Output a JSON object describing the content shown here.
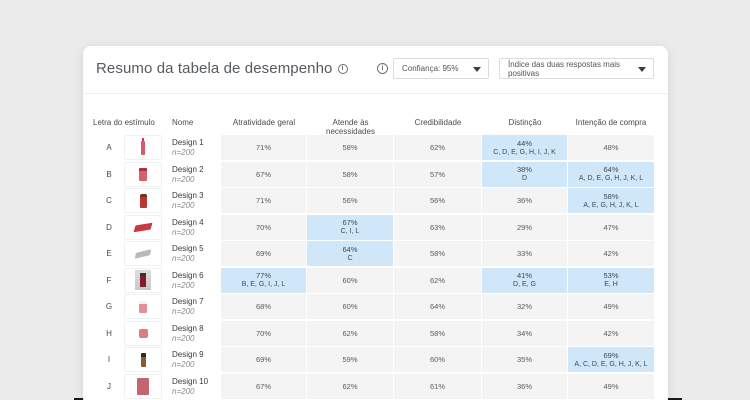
{
  "header": {
    "title": "Resumo da tabela de desempenho",
    "confidence_select": "Confiança: 95%",
    "index_select": "Índice das duas respostas mais positivas"
  },
  "colors": {
    "highlight": "#cfe7f8",
    "cell_bg": "#f4f4f4"
  },
  "table": {
    "columns": [
      "Letra do estímulo",
      "Nome",
      "Atratividade geral",
      "Atende às necessidades",
      "Credibilidade",
      "Distinção",
      "Intenção de compra"
    ],
    "rows": [
      {
        "letter": "A",
        "name": "Design 1",
        "n": "n=200",
        "product": "pink-bottle",
        "atr": {
          "v": "71%",
          "s": ""
        },
        "ate": {
          "v": "58%",
          "s": ""
        },
        "cre": {
          "v": "62%",
          "s": ""
        },
        "dis": {
          "v": "44%",
          "s": "C, D, E, G, H, I, J, K"
        },
        "int": {
          "v": "48%",
          "s": ""
        }
      },
      {
        "letter": "B",
        "name": "Design 2",
        "n": "n=200",
        "product": "pink-jar",
        "atr": {
          "v": "67%",
          "s": ""
        },
        "ate": {
          "v": "58%",
          "s": ""
        },
        "cre": {
          "v": "57%",
          "s": ""
        },
        "dis": {
          "v": "38%",
          "s": "D"
        },
        "int": {
          "v": "64%",
          "s": "A, D, E, G, H, J, K, L"
        }
      },
      {
        "letter": "C",
        "name": "Design 3",
        "n": "n=200",
        "product": "amber-bottle",
        "atr": {
          "v": "71%",
          "s": ""
        },
        "ate": {
          "v": "56%",
          "s": ""
        },
        "cre": {
          "v": "56%",
          "s": ""
        },
        "dis": {
          "v": "36%",
          "s": ""
        },
        "int": {
          "v": "58%",
          "s": "A, E, G, H, J, K, L"
        }
      },
      {
        "letter": "D",
        "name": "Design 4",
        "n": "n=200",
        "product": "red-box",
        "atr": {
          "v": "70%",
          "s": ""
        },
        "ate": {
          "v": "67%",
          "s": "C, I, L"
        },
        "cre": {
          "v": "63%",
          "s": ""
        },
        "dis": {
          "v": "29%",
          "s": ""
        },
        "int": {
          "v": "47%",
          "s": ""
        }
      },
      {
        "letter": "E",
        "name": "Design 5",
        "n": "n=200",
        "product": "gray-box",
        "atr": {
          "v": "69%",
          "s": ""
        },
        "ate": {
          "v": "64%",
          "s": "C"
        },
        "cre": {
          "v": "58%",
          "s": ""
        },
        "dis": {
          "v": "33%",
          "s": ""
        },
        "int": {
          "v": "42%",
          "s": ""
        }
      },
      {
        "letter": "F",
        "name": "Design 6",
        "n": "n=200",
        "product": "photo-bottle",
        "atr": {
          "v": "77%",
          "s": "B, E, G, I, J, L"
        },
        "ate": {
          "v": "60%",
          "s": ""
        },
        "cre": {
          "v": "62%",
          "s": ""
        },
        "dis": {
          "v": "41%",
          "s": "D, E, G"
        },
        "int": {
          "v": "53%",
          "s": "E, H"
        }
      },
      {
        "letter": "G",
        "name": "Design 7",
        "n": "n=200",
        "product": "pink-tub",
        "atr": {
          "v": "68%",
          "s": ""
        },
        "ate": {
          "v": "60%",
          "s": ""
        },
        "cre": {
          "v": "64%",
          "s": ""
        },
        "dis": {
          "v": "32%",
          "s": ""
        },
        "int": {
          "v": "49%",
          "s": ""
        }
      },
      {
        "letter": "H",
        "name": "Design 8",
        "n": "n=200",
        "product": "pink-tub-small",
        "atr": {
          "v": "70%",
          "s": ""
        },
        "ate": {
          "v": "62%",
          "s": ""
        },
        "cre": {
          "v": "58%",
          "s": ""
        },
        "dis": {
          "v": "34%",
          "s": ""
        },
        "int": {
          "v": "42%",
          "s": ""
        }
      },
      {
        "letter": "I",
        "name": "Design 9",
        "n": "n=200",
        "product": "dropper-bottle",
        "atr": {
          "v": "69%",
          "s": ""
        },
        "ate": {
          "v": "59%",
          "s": ""
        },
        "cre": {
          "v": "60%",
          "s": ""
        },
        "dis": {
          "v": "35%",
          "s": ""
        },
        "int": {
          "v": "69%",
          "s": "A, C, D, E, G, H, J, K, L"
        }
      },
      {
        "letter": "J",
        "name": "Design 10",
        "n": "n=200",
        "product": "pink-pouch",
        "atr": {
          "v": "67%",
          "s": ""
        },
        "ate": {
          "v": "62%",
          "s": ""
        },
        "cre": {
          "v": "61%",
          "s": ""
        },
        "dis": {
          "v": "36%",
          "s": ""
        },
        "int": {
          "v": "49%",
          "s": ""
        }
      }
    ]
  }
}
